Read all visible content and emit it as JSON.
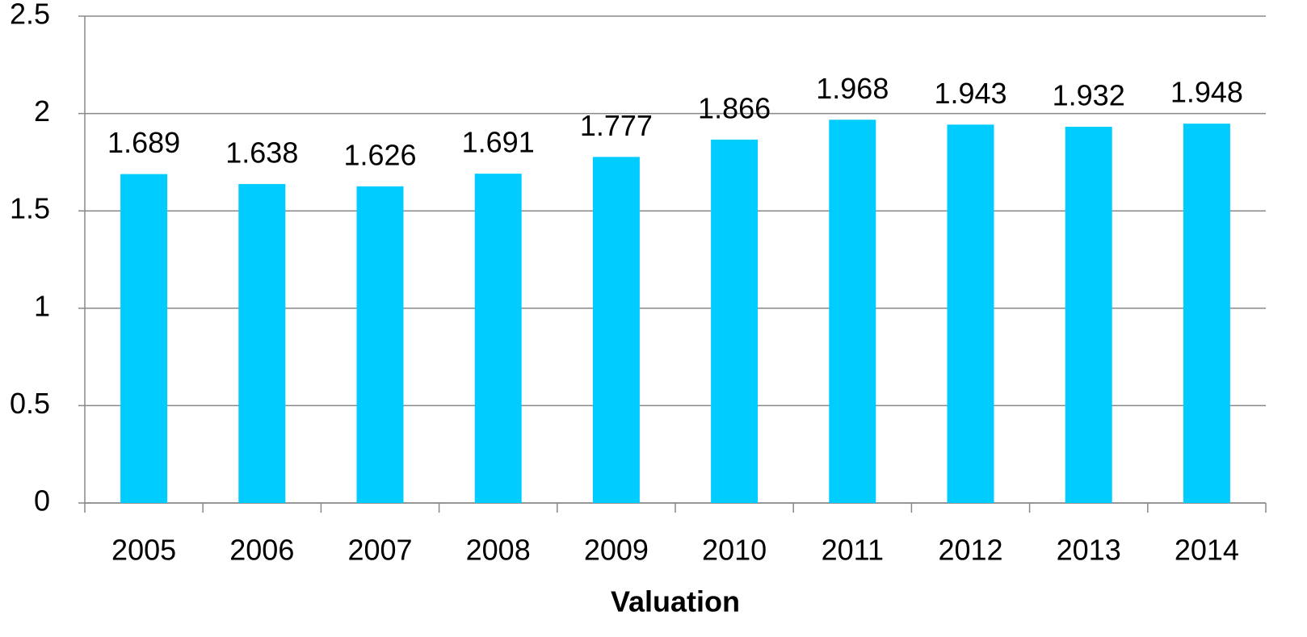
{
  "chart_data": {
    "type": "bar",
    "x_label": "Valuation",
    "categories": [
      "2005",
      "2006",
      "2007",
      "2008",
      "2009",
      "2010",
      "2011",
      "2012",
      "2013",
      "2014"
    ],
    "values": [
      1.689,
      1.638,
      1.626,
      1.691,
      1.777,
      1.866,
      1.968,
      1.943,
      1.932,
      1.948
    ],
    "color": "#00ccff",
    "ylim": [
      0,
      2.5
    ],
    "yticks": [
      0,
      0.5,
      1,
      1.5,
      2,
      2.5
    ],
    "grid": true
  }
}
